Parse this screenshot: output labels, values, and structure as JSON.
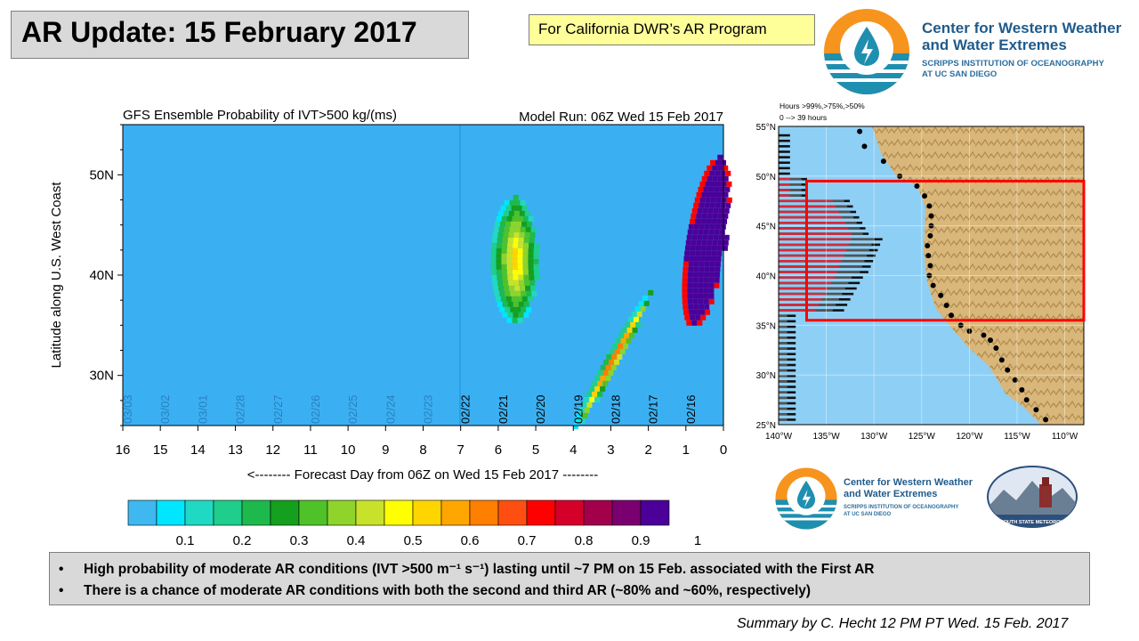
{
  "header": {
    "title": "AR Update: 15 February 2017",
    "program_label": "For California DWR’s AR Program"
  },
  "logos": {
    "cw3e_name_line1": "Center for Western Weather",
    "cw3e_name_line2": "and Water Extremes",
    "cw3e_sub_line1": "SCRIPPS INSTITUTION OF OCEANOGRAPHY",
    "cw3e_sub_line2": "AT UC SAN DIEGO",
    "plymouth_label": "PLYMOUTH STATE METEOROLOGY"
  },
  "chart_data": [
    {
      "type": "heatmap",
      "title": "GFS Ensemble Probability of IVT>500 kg/(ms)",
      "subtitle": "Model Run: 06Z Wed 15 Feb 2017",
      "xlabel": "<-------- Forecast Day from 06Z on Wed 15 Feb 2017 --------",
      "ylabel": "Latitude along U.S. West Coast",
      "x_ticks": [
        "16",
        "15",
        "14",
        "13",
        "12",
        "11",
        "10",
        "9",
        "8",
        "7",
        "6",
        "5",
        "4",
        "3",
        "2",
        "1",
        "0"
      ],
      "xlim": [
        16,
        0
      ],
      "y_ticks": [
        "30N",
        "40N",
        "50N"
      ],
      "ylim": [
        25,
        55
      ],
      "date_labels": [
        "03/03",
        "03/02",
        "03/01",
        "02/28",
        "02/27",
        "02/26",
        "02/25",
        "02/24",
        "02/23",
        "02/22",
        "02/21",
        "02/20",
        "02/19",
        "02/18",
        "02/17",
        "02/16"
      ],
      "colorbar": {
        "ticks": [
          "0.1",
          "0.2",
          "0.3",
          "0.4",
          "0.5",
          "0.6",
          "0.7",
          "0.8",
          "0.9",
          "1"
        ],
        "colors": [
          "#3fb8f0",
          "#00e6ff",
          "#20d9c4",
          "#1fce8c",
          "#1db94c",
          "#14a01e",
          "#4fc22a",
          "#8fd42a",
          "#c8e22c",
          "#ffff00",
          "#ffd500",
          "#ffa600",
          "#ff7f00",
          "#ff4f10",
          "#ff0000",
          "#d4002a",
          "#a2004a",
          "#7a0070",
          "#4b0099"
        ]
      },
      "background_color": "#3ab0f2",
      "features": [
        {
          "name": "AR1",
          "day_range": [
            1.0,
            0.0
          ],
          "lat_range": [
            35.0,
            52.0
          ],
          "max_probability": 1.0
        },
        {
          "name": "AR2",
          "day_range": [
            3.5,
            2.5
          ],
          "lat_range": [
            25.0,
            38.5
          ],
          "max_probability": 0.8
        },
        {
          "name": "AR3",
          "day_range": [
            6.2,
            5.0
          ],
          "lat_range": [
            35.5,
            48.0
          ],
          "max_probability": 0.6
        }
      ]
    },
    {
      "type": "bar",
      "title": "Hours >99%,>75%,>50%",
      "subtitle": "0 --> 39 hours",
      "y_ticks": [
        "25°N",
        "30°N",
        "35°N",
        "40°N",
        "45°N",
        "50°N",
        "55°N"
      ],
      "x_ticks": [
        "140°W",
        "135°W",
        "130°W",
        "125°W",
        "120°W",
        "115°W",
        "110°W"
      ],
      "ylim": [
        25,
        55
      ],
      "xlim": [
        -140,
        -108
      ],
      "highlight_box": {
        "lat": [
          35.5,
          49.5
        ],
        "lon": [
          -131,
          -108
        ]
      },
      "colors": {
        "ocean": "#8ecff5",
        "land": "#d9b77a",
        "bar_99": "#d52b3a",
        "bar_75": "#555555",
        "bar_50": "#111111",
        "box": "#ff0000"
      }
    }
  ],
  "bullets": [
    "High probability of moderate AR conditions (IVT >500 m⁻¹ s⁻¹) lasting until ~7 PM on 15 Feb. associated with the First AR",
    "There is a chance of moderate AR conditions with both the second and third AR (~80% and ~60%, respectively)"
  ],
  "footer": {
    "summary": "Summary by C. Hecht 12 PM PT Wed. 15 Feb. 2017"
  }
}
